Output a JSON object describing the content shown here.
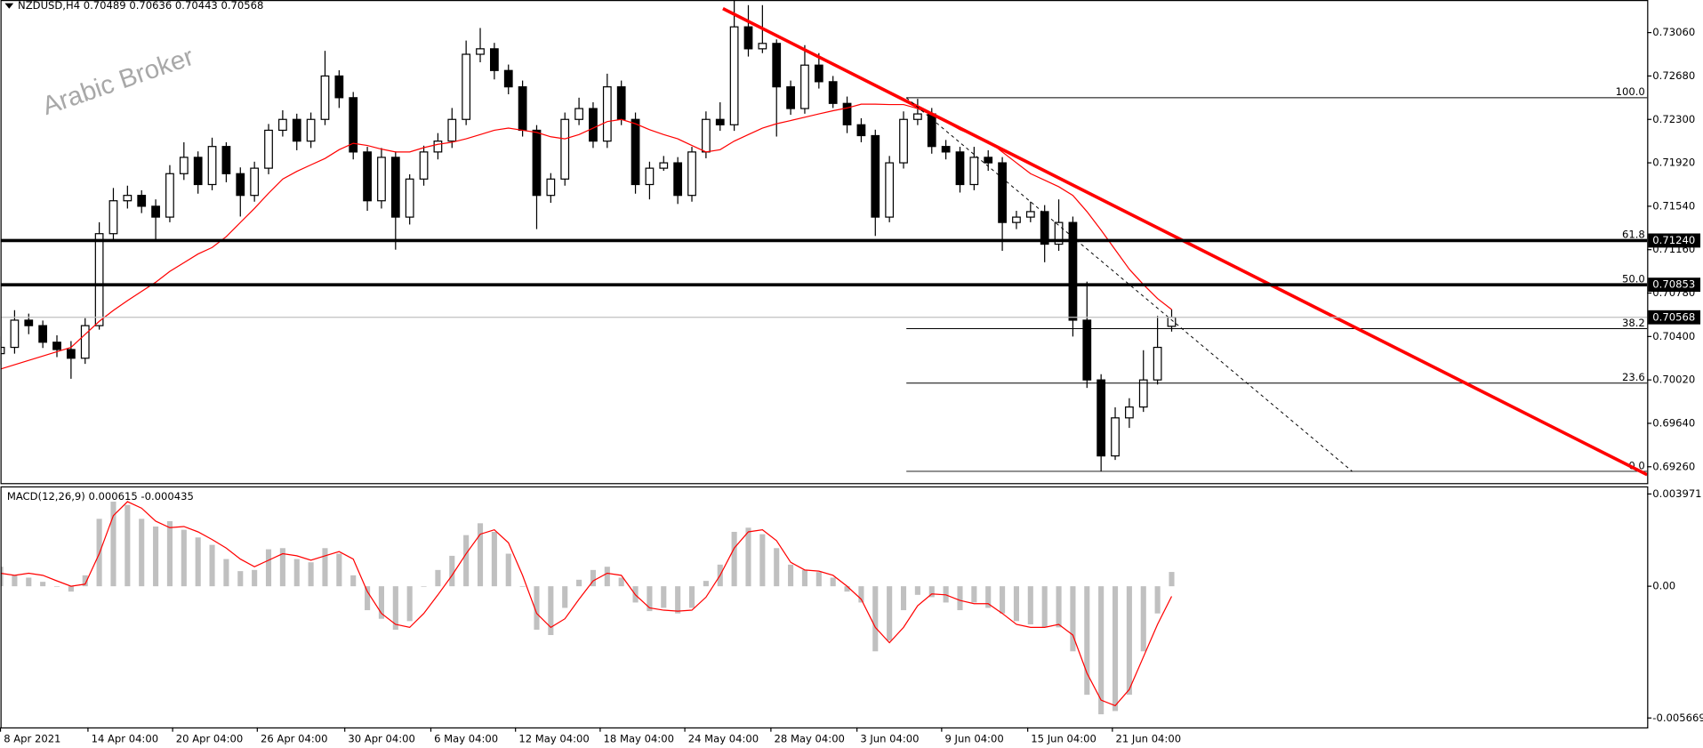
{
  "chart_data": [
    {
      "type": "candlestick",
      "symbol": "NZDUSD,H4",
      "watermark": "Arabic Broker",
      "colors": {
        "bull": "#ffffff",
        "bear": "#000000",
        "wick": "#000000"
      },
      "candles": [
        [
          0.7025,
          0.704,
          0.7015,
          0.70305
        ],
        [
          0.70305,
          0.7063,
          0.7025,
          0.70543
        ],
        [
          0.70543,
          0.706,
          0.7042,
          0.70495
        ],
        [
          0.70495,
          0.7054,
          0.703,
          0.7035
        ],
        [
          0.7035,
          0.7041,
          0.7022,
          0.70286
        ],
        [
          0.70286,
          0.7036,
          0.7003,
          0.7021
        ],
        [
          0.7021,
          0.7056,
          0.7016,
          0.70495
        ],
        [
          0.70495,
          0.714,
          0.7046,
          0.713
        ],
        [
          0.713,
          0.717,
          0.7125,
          0.71588
        ],
        [
          0.71588,
          0.7172,
          0.7152,
          0.71635
        ],
        [
          0.71635,
          0.7168,
          0.7148,
          0.7154
        ],
        [
          0.7154,
          0.716,
          0.7123,
          0.71445
        ],
        [
          0.71445,
          0.719,
          0.714,
          0.71825
        ],
        [
          0.71825,
          0.721,
          0.7177,
          0.71968
        ],
        [
          0.71968,
          0.7202,
          0.7165,
          0.7173
        ],
        [
          0.7173,
          0.7214,
          0.7168,
          0.72063
        ],
        [
          0.72063,
          0.721,
          0.7175,
          0.71825
        ],
        [
          0.71825,
          0.7188,
          0.7145,
          0.71635
        ],
        [
          0.71635,
          0.7193,
          0.7158,
          0.71873
        ],
        [
          0.71873,
          0.7226,
          0.7182,
          0.72205
        ],
        [
          0.72205,
          0.7238,
          0.7215,
          0.723
        ],
        [
          0.723,
          0.7235,
          0.7203,
          0.7211
        ],
        [
          0.7211,
          0.7236,
          0.7205,
          0.723
        ],
        [
          0.723,
          0.729,
          0.7225,
          0.7268
        ],
        [
          0.7268,
          0.7273,
          0.724,
          0.7249
        ],
        [
          0.7249,
          0.7254,
          0.7195,
          0.72015
        ],
        [
          0.72015,
          0.7206,
          0.715,
          0.71588
        ],
        [
          0.71588,
          0.7205,
          0.7152,
          0.71968
        ],
        [
          0.71968,
          0.7202,
          0.7116,
          0.71445
        ],
        [
          0.71445,
          0.7182,
          0.7138,
          0.71778
        ],
        [
          0.71778,
          0.7207,
          0.7172,
          0.72015
        ],
        [
          0.72015,
          0.7218,
          0.7195,
          0.7211
        ],
        [
          0.7211,
          0.724,
          0.7205,
          0.723
        ],
        [
          0.723,
          0.7299,
          0.7225,
          0.7287
        ],
        [
          0.7287,
          0.731,
          0.728,
          0.72918
        ],
        [
          0.72918,
          0.7297,
          0.7265,
          0.72728
        ],
        [
          0.72728,
          0.7278,
          0.7252,
          0.72585
        ],
        [
          0.72585,
          0.7264,
          0.7215,
          0.72205
        ],
        [
          0.72205,
          0.7225,
          0.7134,
          0.71635
        ],
        [
          0.71635,
          0.7183,
          0.7157,
          0.71778
        ],
        [
          0.71778,
          0.7236,
          0.7172,
          0.723
        ],
        [
          0.723,
          0.7249,
          0.7225,
          0.72395
        ],
        [
          0.72395,
          0.7245,
          0.7205,
          0.7211
        ],
        [
          0.7211,
          0.727,
          0.7205,
          0.72585
        ],
        [
          0.72585,
          0.7264,
          0.7225,
          0.723
        ],
        [
          0.723,
          0.7236,
          0.7165,
          0.7173
        ],
        [
          0.7173,
          0.7193,
          0.716,
          0.71873
        ],
        [
          0.71873,
          0.7198,
          0.7185,
          0.7192
        ],
        [
          0.7192,
          0.7197,
          0.7156,
          0.71635
        ],
        [
          0.71635,
          0.7206,
          0.7158,
          0.72015
        ],
        [
          0.72015,
          0.7237,
          0.7196,
          0.723
        ],
        [
          0.723,
          0.7245,
          0.722,
          0.72253
        ],
        [
          0.72253,
          0.7334,
          0.722,
          0.7311
        ],
        [
          0.7311,
          0.733,
          0.7285,
          0.72918
        ],
        [
          0.72918,
          0.733,
          0.7288,
          0.72965
        ],
        [
          0.72965,
          0.73,
          0.7215,
          0.72585
        ],
        [
          0.72585,
          0.7264,
          0.7234,
          0.72395
        ],
        [
          0.72395,
          0.7295,
          0.7235,
          0.72775
        ],
        [
          0.72775,
          0.7288,
          0.7257,
          0.7263
        ],
        [
          0.7263,
          0.7268,
          0.724,
          0.7244
        ],
        [
          0.7244,
          0.725,
          0.7218,
          0.72253
        ],
        [
          0.72253,
          0.7231,
          0.721,
          0.72158
        ],
        [
          0.72158,
          0.7221,
          0.7128,
          0.71445
        ],
        [
          0.71445,
          0.7198,
          0.714,
          0.7192
        ],
        [
          0.7192,
          0.7237,
          0.7187,
          0.723
        ],
        [
          0.723,
          0.7248,
          0.7225,
          0.72348
        ],
        [
          0.72348,
          0.724,
          0.72,
          0.72063
        ],
        [
          0.72063,
          0.7212,
          0.7195,
          0.72015
        ],
        [
          0.72015,
          0.7206,
          0.7166,
          0.7173
        ],
        [
          0.7173,
          0.7206,
          0.7168,
          0.71968
        ],
        [
          0.71968,
          0.7203,
          0.7185,
          0.7192
        ],
        [
          0.7192,
          0.7197,
          0.7115,
          0.71398
        ],
        [
          0.71398,
          0.715,
          0.7134,
          0.71445
        ],
        [
          0.71445,
          0.7158,
          0.714,
          0.71493
        ],
        [
          0.71493,
          0.7155,
          0.7105,
          0.71208
        ],
        [
          0.71208,
          0.716,
          0.7115,
          0.71398
        ],
        [
          0.71398,
          0.7145,
          0.704,
          0.70543
        ],
        [
          0.70543,
          0.7088,
          0.6995,
          0.7002
        ],
        [
          0.7002,
          0.7007,
          0.6922,
          0.69355
        ],
        [
          0.69355,
          0.6978,
          0.6932,
          0.69688
        ],
        [
          0.69688,
          0.6986,
          0.696,
          0.69783
        ],
        [
          0.69783,
          0.7028,
          0.6974,
          0.7002
        ],
        [
          0.7002,
          0.7058,
          0.6998,
          0.70305
        ],
        [
          0.70489,
          0.70636,
          0.70443,
          0.70568
        ]
      ],
      "ma": {
        "color": "#ff0000",
        "values": [
          0.70115,
          0.70153,
          0.70191,
          0.70229,
          0.70267,
          0.70305,
          0.70419,
          0.70533,
          0.70628,
          0.70714,
          0.70795,
          0.70875,
          0.7097,
          0.71046,
          0.71122,
          0.71179,
          0.71274,
          0.71398,
          0.71521,
          0.71654,
          0.71778,
          0.71845,
          0.71902,
          0.71958,
          0.72035,
          0.72091,
          0.72072,
          0.7204,
          0.72015,
          0.72015,
          0.72053,
          0.72082,
          0.721,
          0.7213,
          0.72167,
          0.72205,
          0.72224,
          0.72205,
          0.72186,
          0.72148,
          0.7213,
          0.72167,
          0.72224,
          0.72281,
          0.723,
          0.72262,
          0.7221,
          0.72167,
          0.7213,
          0.72072,
          0.72015,
          0.72035,
          0.7211,
          0.72167,
          0.72224,
          0.72262,
          0.7229,
          0.72319,
          0.72348,
          0.72376,
          0.724,
          0.72433,
          0.72433,
          0.7243,
          0.7243,
          0.72395,
          0.72338,
          0.72281,
          0.7221,
          0.72158,
          0.7211,
          0.72015,
          0.7192,
          0.71825,
          0.71768,
          0.71711,
          0.71635,
          0.71493,
          0.71331,
          0.7116,
          0.70989,
          0.70855,
          0.70732,
          0.70636
        ]
      },
      "xlim": [
        0,
        116.7
      ],
      "xticks": [
        {
          "value": 0,
          "label": "8 Apr 2021"
        },
        {
          "value": 6.2,
          "label": "14 Apr 04:00"
        },
        {
          "value": 12.2,
          "label": "20 Apr 04:00"
        },
        {
          "value": 18.2,
          "label": "26 Apr 04:00"
        },
        {
          "value": 24.4,
          "label": "30 Apr 04:00"
        },
        {
          "value": 30.5,
          "label": "6 May 04:00"
        },
        {
          "value": 36.5,
          "label": "12 May 04:00"
        },
        {
          "value": 42.5,
          "label": "18 May 04:00"
        },
        {
          "value": 48.5,
          "label": "24 May 04:00"
        },
        {
          "value": 54.6,
          "label": "28 May 04:00"
        },
        {
          "value": 60.7,
          "label": "3 Jun 04:00"
        },
        {
          "value": 66.7,
          "label": "9 Jun 04:00"
        },
        {
          "value": 72.8,
          "label": "15 Jun 04:00"
        },
        {
          "value": 78.8,
          "label": "21 Jun 04:00"
        }
      ],
      "ylim": [
        0.69117,
        0.73345
      ],
      "yticks": [
        {
          "value": 0.7306,
          "label": "0.73060"
        },
        {
          "value": 0.7268,
          "label": "0.72680"
        },
        {
          "value": 0.723,
          "label": "0.72300"
        },
        {
          "value": 0.7192,
          "label": "0.71920"
        },
        {
          "value": 0.7154,
          "label": "0.71540"
        },
        {
          "value": 0.7116,
          "label": "0.71160"
        },
        {
          "value": 0.7078,
          "label": "0.70780"
        },
        {
          "value": 0.704,
          "label": "0.70400"
        },
        {
          "value": 0.7002,
          "label": "0.70020"
        },
        {
          "value": 0.6964,
          "label": "0.69640"
        },
        {
          "value": 0.6926,
          "label": "0.69260"
        }
      ],
      "hlines": [
        {
          "value": 0.7124,
          "label": "0.71240",
          "color": "#000000"
        },
        {
          "value": 0.70853,
          "label": "0.70853",
          "color": "#000000"
        }
      ],
      "fibonacci": {
        "high": 0.7249,
        "low": 0.6922,
        "x_start": 64.2,
        "color": "#000000",
        "levels": [
          {
            "value": 100,
            "label": "100.0"
          },
          61.8,
          {
            "value": 50,
            "label": "50.0"
          },
          38.2,
          23.6,
          {
            "value": 0,
            "label": "0.0"
          }
        ]
      },
      "trendlines": [
        {
          "points": [
            [
              51.2,
              0.7327
            ],
            [
              116.7,
              0.6919
            ]
          ],
          "color": "#ff0000",
          "style": "solid"
        },
        {
          "points": [
            [
              64.2,
              0.7249
            ],
            [
              95.8,
              0.6922
            ]
          ],
          "color": "#000000",
          "style": "dashed"
        }
      ]
    },
    {
      "type": "macd",
      "title": "MACD(12,26,9)",
      "histogram": {
        "color": "#c0c0c0",
        "values": [
          0.00084,
          0.00047,
          0.00037,
          0.00019,
          0,
          -0.00023,
          0.00047,
          0.0029,
          0.00364,
          0.0035,
          0.0029,
          0.00257,
          0.0028,
          0.00243,
          0.0021,
          0.00178,
          0.00117,
          0.00065,
          0.0007,
          0.00159,
          0.00164,
          0.00117,
          0.00103,
          0.00164,
          0.0014,
          0.00047,
          -0.00103,
          -0.0014,
          -0.00187,
          -0.0015,
          0,
          0.0007,
          0.00131,
          0.0022,
          0.00271,
          0.00234,
          0.0014,
          0,
          -0.00187,
          -0.0021,
          -0.00093,
          0.00028,
          0.0007,
          0.00084,
          0.00037,
          -0.0007,
          -0.00107,
          -0.00093,
          -0.00117,
          -0.00093,
          0.00023,
          0.00093,
          0.00234,
          0.00252,
          0.00224,
          0.00164,
          0.00093,
          0.0007,
          0.00061,
          0.00037,
          -0.00023,
          -0.0007,
          -0.0028,
          -0.00234,
          -0.00103,
          -0.00037,
          -0.00047,
          -0.0007,
          -0.00103,
          -0.0007,
          -0.00093,
          -0.00117,
          -0.0015,
          -0.00164,
          -0.00177,
          -0.00177,
          -0.0028,
          -0.00467,
          -0.00551,
          -0.00537,
          -0.00467,
          -0.0028,
          -0.00117,
          0.000615
        ]
      },
      "signal": {
        "color": "#ff0000",
        "values": [
          0.00056,
          0.00047,
          0.00056,
          0.00047,
          0.00023,
          0,
          9e-05,
          0.0014,
          0.00304,
          0.00364,
          0.00336,
          0.0028,
          0.00252,
          0.00257,
          0.00234,
          0.00201,
          0.00164,
          0.00117,
          0.00084,
          0.00112,
          0.0014,
          0.00131,
          0.00112,
          0.00131,
          0.00149,
          0.00117,
          -0.00023,
          -0.00117,
          -0.00164,
          -0.00177,
          -0.00117,
          -0.00037,
          0.00047,
          0.0014,
          0.00224,
          0.00243,
          0.00187,
          0.00047,
          -0.00117,
          -0.00177,
          -0.0014,
          -0.00056,
          0.00023,
          0.00056,
          0.00047,
          -0.00037,
          -0.00093,
          -0.00103,
          -0.00107,
          -0.00103,
          -0.00047,
          0.00047,
          0.00164,
          0.00234,
          0.00243,
          0.00196,
          0.00103,
          0.0007,
          0.00065,
          0.00047,
          0,
          -0.00056,
          -0.00177,
          -0.00243,
          -0.00177,
          -0.00084,
          -0.00033,
          -0.00037,
          -0.00061,
          -0.00075,
          -0.00075,
          -0.00117,
          -0.00164,
          -0.00177,
          -0.00177,
          -0.00164,
          -0.0021,
          -0.00374,
          -0.0049,
          -0.00514,
          -0.00444,
          -0.00304,
          -0.00164,
          -0.000435
        ]
      },
      "ylim": [
        -0.006073,
        0.004298
      ],
      "yticks": [
        0.003971,
        {
          "value": 0,
          "label": "0.00"
        },
        -0.005669
      ]
    }
  ]
}
